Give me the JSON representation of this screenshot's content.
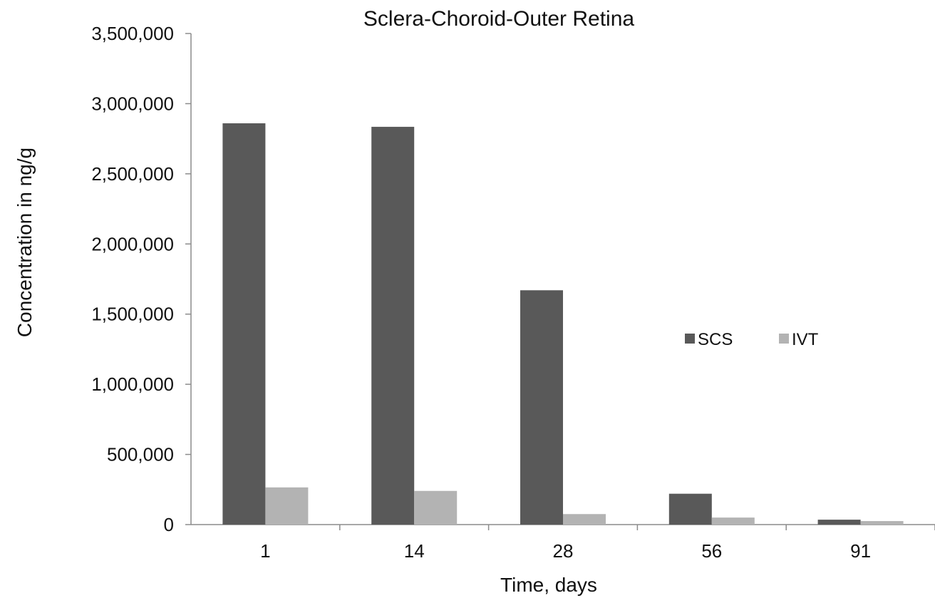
{
  "chart_data": {
    "type": "bar",
    "title": "Sclera-Choroid-Outer Retina",
    "xlabel": "Time, days",
    "ylabel": "Concentration in ng/g",
    "categories": [
      "1",
      "14",
      "28",
      "56",
      "91"
    ],
    "series": [
      {
        "name": "SCS",
        "color": "#595959",
        "values": [
          2860000,
          2835000,
          1670000,
          220000,
          35000
        ]
      },
      {
        "name": "IVT",
        "color": "#b3b3b3",
        "values": [
          265000,
          240000,
          75000,
          50000,
          25000
        ]
      }
    ],
    "ylim": [
      0,
      3500000
    ],
    "yticks": [
      0,
      500000,
      1000000,
      1500000,
      2000000,
      2500000,
      3000000,
      3500000
    ],
    "ytick_labels": [
      "0",
      "500,000",
      "1,000,000",
      "1,500,000",
      "2,000,000",
      "2,500,000",
      "3,000,000",
      "3,500,000"
    ],
    "grid": false,
    "legend": "right"
  }
}
